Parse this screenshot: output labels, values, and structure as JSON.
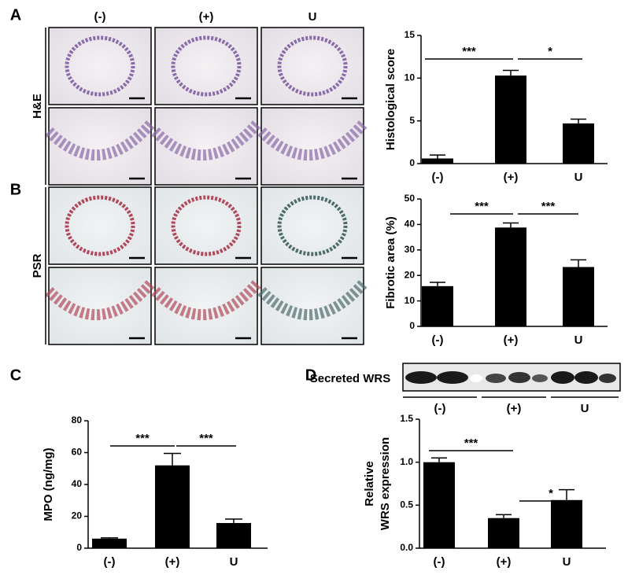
{
  "panel_labels": [
    "A",
    "B",
    "C",
    "D"
  ],
  "histology": {
    "columns": [
      "(-)",
      "(+)",
      "U"
    ],
    "rows": [
      "H&E",
      "PSR"
    ]
  },
  "blot": {
    "label": "Secreted WRS",
    "groups": [
      "(-)",
      "(+)",
      "U"
    ]
  },
  "chart_data": [
    {
      "type": "bar",
      "y_label": "Histological score",
      "categories": [
        "(-)",
        "(+)",
        "U"
      ],
      "values": [
        0.6,
        10.3,
        4.7
      ],
      "errors": [
        0.4,
        0.6,
        0.5
      ],
      "color": "#000000",
      "ylim": [
        0,
        15
      ],
      "yticks": [
        0,
        5,
        10,
        15
      ],
      "significance": [
        "***",
        "*"
      ]
    },
    {
      "type": "bar",
      "y_label": "Fibrotic area (%)",
      "categories": [
        "(-)",
        "(+)",
        "U"
      ],
      "values": [
        15.8,
        38.8,
        23.3
      ],
      "errors": [
        1.5,
        1.8,
        2.8
      ],
      "color": "#000000",
      "ylim": [
        0,
        50
      ],
      "yticks": [
        0,
        10,
        20,
        30,
        40,
        50
      ],
      "significance": [
        "***",
        "***"
      ]
    },
    {
      "type": "bar",
      "y_label": "MPO (ng/mg)",
      "categories": [
        "(-)",
        "(+)",
        "U"
      ],
      "values": [
        6,
        52,
        15.8
      ],
      "errors": [
        0.5,
        7.5,
        2.5
      ],
      "color": "#000000",
      "ylim": [
        0,
        80
      ],
      "yticks": [
        0,
        20,
        40,
        60,
        80
      ],
      "significance": [
        "***",
        "***"
      ]
    },
    {
      "type": "bar",
      "y_label": [
        "Relative",
        "WRS expression"
      ],
      "categories": [
        "(-)",
        "(+)",
        "U"
      ],
      "values": [
        1.0,
        0.35,
        0.56
      ],
      "errors": [
        0.05,
        0.04,
        0.12
      ],
      "color": "#000000",
      "ylim": [
        0,
        1.5
      ],
      "yticks": [
        {
          "value": 0,
          "label": "0.0"
        },
        {
          "value": 0.5,
          "label": "0.5"
        },
        {
          "value": 1,
          "label": "1.0"
        },
        {
          "value": 1.5,
          "label": "1.5"
        }
      ],
      "significance": [
        "***",
        "*"
      ]
    }
  ]
}
